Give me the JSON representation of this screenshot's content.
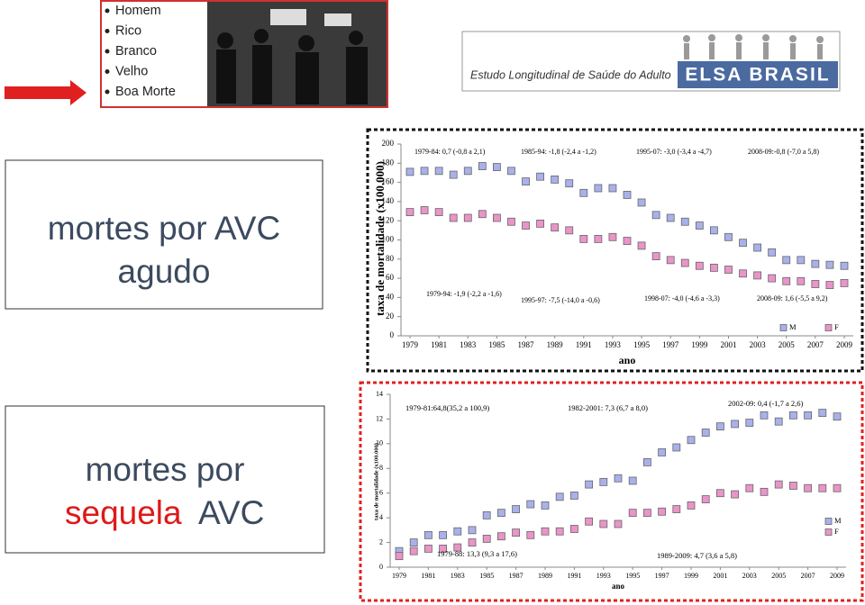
{
  "slide": {
    "bullets": [
      "Homem",
      "Rico",
      "Branco",
      "Velho",
      "Boa Morte"
    ],
    "logo": {
      "subtitle": "Estudo Longitudinal de Saúde do Adulto",
      "name": "ELSA BRASIL"
    },
    "panels": [
      {
        "lines": [
          "mortes por AVC",
          "agudo"
        ]
      },
      {
        "lines": [
          "mortes por",
          "sequela",
          "AVC"
        ]
      }
    ]
  },
  "chart_data": [
    {
      "type": "scatter",
      "y_label": "taxa de mortalidade (x100.000)",
      "x_label": "ano",
      "x": [
        1979,
        1980,
        1981,
        1982,
        1983,
        1984,
        1985,
        1986,
        1987,
        1988,
        1989,
        1990,
        1991,
        1992,
        1993,
        1994,
        1995,
        1996,
        1997,
        1998,
        1999,
        2000,
        2001,
        2002,
        2003,
        2004,
        2005,
        2006,
        2007,
        2008,
        2009
      ],
      "xlim": [
        1979,
        2009
      ],
      "xticks": [
        1979,
        1981,
        1983,
        1985,
        1987,
        1989,
        1991,
        1993,
        1995,
        1997,
        1999,
        2001,
        2003,
        2005,
        2007,
        2009
      ],
      "ylim": [
        0,
        200
      ],
      "yticks": [
        0,
        20,
        40,
        60,
        80,
        100,
        120,
        140,
        160,
        180,
        200
      ],
      "legend": "bottom-right",
      "series": [
        {
          "name": "M",
          "color": "#a9b1ea",
          "values": [
            171,
            172,
            172,
            168,
            172,
            177,
            176,
            172,
            161,
            166,
            163,
            159,
            149,
            154,
            154,
            147,
            139,
            126,
            123,
            119,
            115,
            110,
            103,
            97,
            92,
            87,
            79,
            79,
            75,
            74,
            73
          ]
        },
        {
          "name": "F",
          "color": "#ea94c9",
          "values": [
            129,
            131,
            129,
            123,
            123,
            127,
            123,
            119,
            115,
            117,
            113,
            110,
            101,
            101,
            103,
            99,
            94,
            83,
            79,
            76,
            73,
            71,
            69,
            65,
            63,
            60,
            57,
            57,
            54,
            53,
            55
          ]
        }
      ],
      "annotations": [
        "1979-84: 0,7 (-0,8 a 2,1)",
        "1985-94: -1,8 (-2,4 a -1,2)",
        "1995-07: -3,0 (-3,4 a -4,7)",
        "2008-09:-0,8 (-7,0 a 5,8)",
        "1979-94: -1,9 (-2,2 a -1,6)",
        "1995-97: -7,5 (-14,0 a -0,6)",
        "1998-07: -4,0 (-4,6 a -3,3)",
        "2008-09: 1,6 (-5,5 a  9,2)"
      ]
    },
    {
      "type": "scatter",
      "y_label": "taxa de mortalidade (x100.000)",
      "x_label": "ano",
      "x": [
        1979,
        1980,
        1981,
        1982,
        1983,
        1984,
        1985,
        1986,
        1987,
        1988,
        1989,
        1990,
        1991,
        1992,
        1993,
        1994,
        1995,
        1996,
        1997,
        1998,
        1999,
        2000,
        2001,
        2002,
        2003,
        2004,
        2005,
        2006,
        2007,
        2008,
        2009
      ],
      "xlim": [
        1979,
        2009
      ],
      "xticks": [
        1979,
        1981,
        1983,
        1985,
        1987,
        1989,
        1991,
        1993,
        1995,
        1997,
        1999,
        2001,
        2003,
        2005,
        2007,
        2009
      ],
      "ylim": [
        0,
        14
      ],
      "yticks": [
        0,
        2,
        4,
        6,
        8,
        10,
        12,
        14
      ],
      "legend": "right",
      "series": [
        {
          "name": "M",
          "color": "#a9b1ea",
          "values": [
            1.3,
            2.0,
            2.6,
            2.6,
            2.9,
            3.0,
            4.2,
            4.4,
            4.7,
            5.1,
            5.0,
            5.7,
            5.8,
            6.7,
            6.9,
            7.2,
            7.0,
            8.5,
            9.3,
            9.7,
            10.3,
            10.9,
            11.4,
            11.6,
            11.7,
            12.3,
            11.8,
            12.3,
            12.3,
            12.5,
            12.2
          ]
        },
        {
          "name": "F",
          "color": "#ea94c9",
          "values": [
            0.9,
            1.3,
            1.5,
            1.5,
            1.6,
            2.0,
            2.3,
            2.5,
            2.8,
            2.6,
            2.9,
            2.9,
            3.1,
            3.7,
            3.5,
            3.5,
            4.4,
            4.4,
            4.5,
            4.7,
            5.0,
            5.5,
            6.0,
            5.9,
            6.4,
            6.1,
            6.7,
            6.6,
            6.4,
            6.4,
            6.4
          ]
        }
      ],
      "annotations": [
        "1979-81:64,8(35,2 a 100,9)",
        "1982-2001: 7,3 (6,7 a 8,0)",
        "2002-09: 0,4 (-1,7 a 2,6)",
        "1979-88: 13,3 (9,3 a 17,6)",
        "1989-2009: 4,7 (3,6 a 5,8)"
      ]
    }
  ]
}
